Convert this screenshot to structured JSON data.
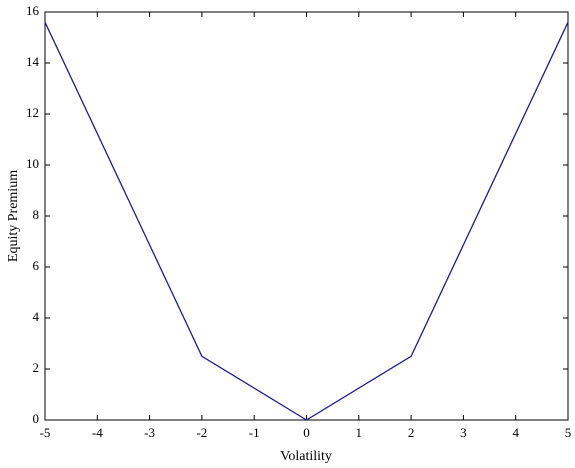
{
  "chart_data": {
    "type": "line",
    "x_label": "Volatility",
    "y_label": "Equity Premium",
    "x": [
      -5,
      -2,
      0,
      2,
      5
    ],
    "series": [
      {
        "color": "#1f1f8c",
        "values": [
          15.6,
          2.5,
          0,
          2.5,
          15.6
        ]
      }
    ],
    "xlim": [
      -5,
      5
    ],
    "xticks": [
      -5,
      -4,
      -3,
      -2,
      -1,
      0,
      1,
      2,
      3,
      4,
      5
    ],
    "ylim": [
      0,
      16
    ],
    "yticks": [
      0,
      2,
      4,
      6,
      8,
      10,
      12,
      14,
      16
    ]
  }
}
